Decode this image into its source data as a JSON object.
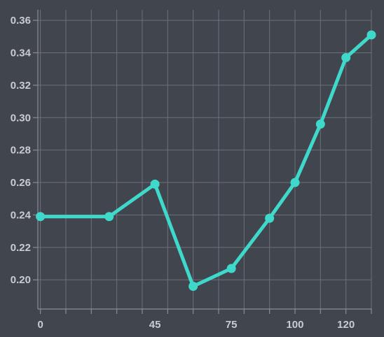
{
  "chart_data": {
    "type": "line",
    "title": "",
    "xlabel": "",
    "ylabel": "",
    "x_ticks": [
      0,
      45,
      75,
      100,
      120
    ],
    "y_ticks": [
      0.2,
      0.22,
      0.24,
      0.26,
      0.28,
      0.3,
      0.32,
      0.34,
      0.36
    ],
    "xlim": [
      -1,
      130
    ],
    "ylim": [
      0.182,
      0.3665
    ],
    "grid": true,
    "series": [
      {
        "x": [
          0,
          27,
          45,
          60,
          75,
          90,
          100,
          110,
          120,
          130
        ],
        "y": [
          0.239,
          0.239,
          0.259,
          0.196,
          0.207,
          0.238,
          0.26,
          0.296,
          0.337,
          0.351
        ]
      }
    ]
  },
  "colors": {
    "background": "#41454d",
    "series": "#3fd9cc",
    "grid": "#6d7079",
    "tick_text": "#c9ccd2"
  }
}
